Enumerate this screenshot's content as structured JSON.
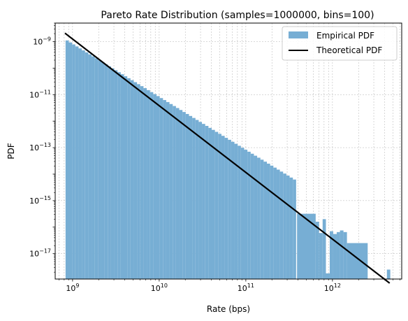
{
  "chart_data": {
    "type": "histogram",
    "title": "Pareto Rate Distribution (samples=1000000, bins=100)",
    "xlabel": "Rate (bps)",
    "ylabel": "PDF",
    "xscale": "log",
    "yscale": "log",
    "xlim": [
      630000000.0,
      6300000000000.0
    ],
    "ylim": [
      1.1e-18,
      5e-09
    ],
    "grid": true,
    "legend_position": "top-right",
    "xticks": [
      {
        "value": 1000000000.0,
        "base": "10",
        "exp": "9"
      },
      {
        "value": 10000000000.0,
        "base": "10",
        "exp": "10"
      },
      {
        "value": 100000000000.0,
        "base": "10",
        "exp": "11"
      },
      {
        "value": 1000000000000.0,
        "base": "10",
        "exp": "12"
      }
    ],
    "yticks": [
      {
        "value": 1e-09,
        "base": "10",
        "exp": "−9"
      },
      {
        "value": 1e-11,
        "base": "10",
        "exp": "−11"
      },
      {
        "value": 1e-13,
        "base": "10",
        "exp": "−13"
      },
      {
        "value": 1e-15,
        "base": "10",
        "exp": "−15"
      },
      {
        "value": 1e-17,
        "base": "10",
        "exp": "−17"
      }
    ],
    "series": [
      {
        "name": "Empirical PDF",
        "kind": "histogram",
        "color": "#77aed4",
        "x_min": 830000000.0,
        "x_max": 4650000000000.0,
        "num_bins": 100,
        "pareto_xm": 830000000.0,
        "pareto_alpha": 1.0,
        "irregular_bins": [
          {
            "x_from": 390000000000.0,
            "x_to": 640000000000.0,
            "y": 3.2e-16
          },
          {
            "x_from": 640000000000.0,
            "x_to": 700000000000.0,
            "y": 1.6e-16
          },
          {
            "x_from": 700000000000.0,
            "x_to": 770000000000.0,
            "y": 6e-17
          },
          {
            "x_from": 770000000000.0,
            "x_to": 840000000000.0,
            "y": 2e-16
          },
          {
            "x_from": 840000000000.0,
            "x_to": 930000000000.0,
            "y": 1.8e-18
          },
          {
            "x_from": 930000000000.0,
            "x_to": 1020000000000.0,
            "y": 7e-17
          },
          {
            "x_from": 1020000000000.0,
            "x_to": 1120000000000.0,
            "y": 5.5e-17
          },
          {
            "x_from": 1120000000000.0,
            "x_to": 1220000000000.0,
            "y": 6.5e-17
          },
          {
            "x_from": 1220000000000.0,
            "x_to": 1340000000000.0,
            "y": 7.5e-17
          },
          {
            "x_from": 1340000000000.0,
            "x_to": 1470000000000.0,
            "y": 6.5e-17
          },
          {
            "x_from": 1470000000000.0,
            "x_to": 2550000000000.0,
            "y": 2.5e-17
          },
          {
            "x_from": 4250000000000.0,
            "x_to": 4650000000000.0,
            "y": 2.5e-18
          }
        ]
      },
      {
        "name": "Theoretical PDF",
        "kind": "line",
        "color": "#000000",
        "x": [
          830000000.0,
          4500000000000.0
        ],
        "y": [
          2e-09,
          8e-19
        ]
      }
    ]
  }
}
